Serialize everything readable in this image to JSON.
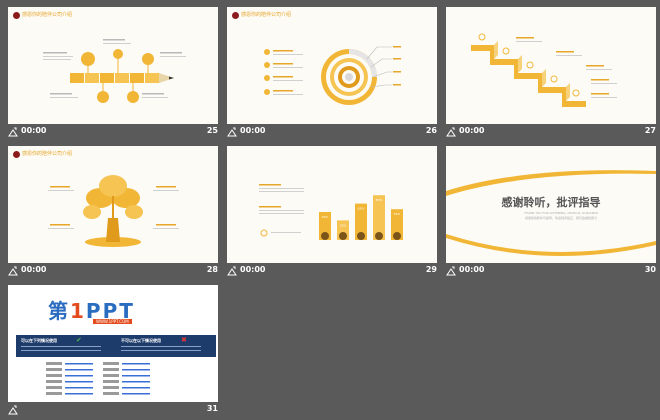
{
  "slide_header": "感恩你的陪伴公司介绍",
  "slides": [
    {
      "number": "25",
      "time": "00:00"
    },
    {
      "number": "26",
      "time": "00:00"
    },
    {
      "number": "27",
      "time": "00:00"
    },
    {
      "number": "28",
      "time": "00:00"
    },
    {
      "number": "29",
      "time": "00:00"
    },
    {
      "number": "30",
      "time": "00:00"
    },
    {
      "number": "31",
      "time": "00:00"
    }
  ],
  "slide30": {
    "title": "感谢聆听，批评指导",
    "subtitle_en": "THANK YOU FOR LISTENING, CRITICAL GUIDANCE",
    "subtitle_cn": "感谢您的聆听与指导，欢迎批评指正，我们会继续努力"
  },
  "slide29": {
    "bar_values": [
      "50%",
      "35%",
      "65%",
      "80%",
      "55%"
    ],
    "values": [
      50,
      35,
      65,
      80,
      55
    ]
  },
  "slide31": {
    "logo_prefix": "第",
    "logo_digit": "1",
    "logo_suffix": "PPT",
    "logo_url": "WWW.1PPT.COM",
    "banner_left": "可以在下列情况使用",
    "banner_right": "不可以在以下情况使用"
  },
  "colors": {
    "accent": "#f2b636",
    "accent_dark": "#e09a1c",
    "background": "#5a5a5a",
    "slide_bg": "#fdfbf6",
    "banner": "#1d3b6b"
  }
}
